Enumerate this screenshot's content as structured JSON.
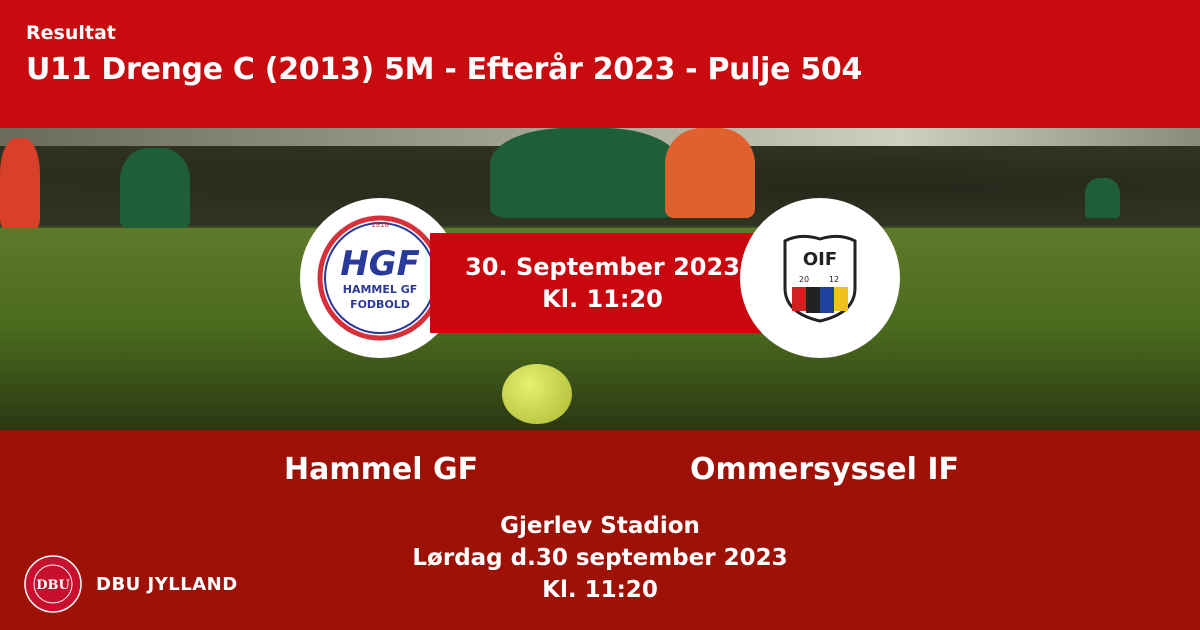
{
  "header": {
    "kicker": "Resultat",
    "title": "U11 Drenge C (2013) 5M - Efterår 2023 - Pulje 504"
  },
  "match": {
    "date": "30. September 2023",
    "time": "Kl. 11:20",
    "home": {
      "name": "Hammel GF",
      "logo_text": "HGF",
      "logo_sub1": "HAMMEL GF",
      "logo_sub2": "FODBOLD",
      "logo_year": "1918"
    },
    "away": {
      "name": "Ommersyssel IF",
      "logo_text": "OIF",
      "logo_year_left": "20",
      "logo_year_right": "12"
    }
  },
  "venue": {
    "stadium": "Gjerlev Stadion",
    "day": "Lørdag d.30 september 2023",
    "time": "Kl. 11:20"
  },
  "brand": {
    "name": "DBU JYLLAND",
    "seal_text": "DBU"
  },
  "colors": {
    "header": "#c70b0e",
    "bottom": "#9e1106",
    "date_band": "#c8080e"
  }
}
